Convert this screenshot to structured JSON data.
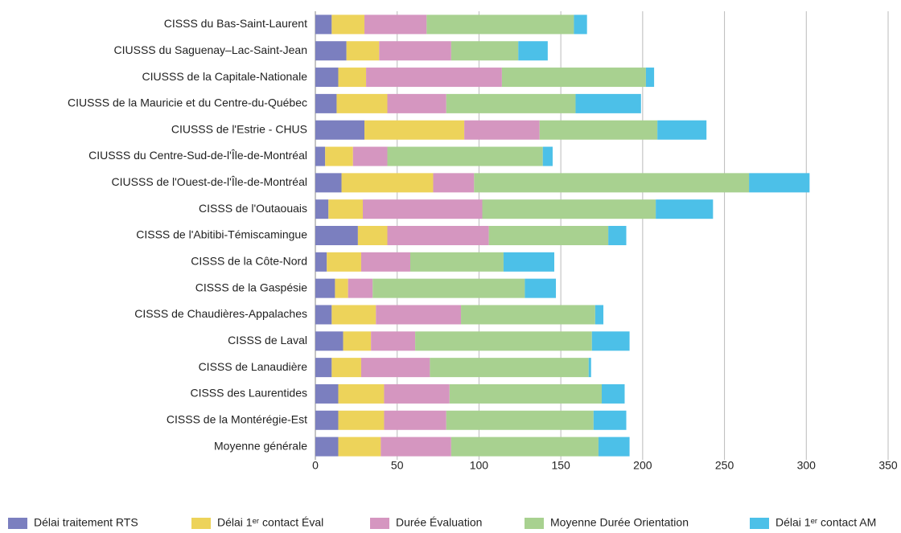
{
  "chart_data": {
    "type": "stacked-barh",
    "categories": [
      "CISSS du Bas-Saint-Laurent",
      "CIUSSS du Saguenay–Lac-Saint-Jean",
      "CIUSSS de la Capitale-Nationale",
      "CIUSSS de la Mauricie et du Centre-du-Québec",
      "CIUSSS de l'Estrie - CHUS",
      "CIUSSS du Centre-Sud-de-l'Île-de-Montréal",
      "CIUSSS de l'Ouest-de-l'Île-de-Montréal",
      "CISSS de l'Outaouais",
      "CISSS de l'Abitibi-Témiscamingue",
      "CISSS de la Côte-Nord",
      "CISSS de la Gaspésie",
      "CISSS de Chaudières-Appalaches",
      "CISSS de Laval",
      "CISSS de Lanaudière",
      "CISSS des Laurentides",
      "CISSS de la Montérégie-Est",
      "Moyenne générale"
    ],
    "series": [
      {
        "name": "Délai traitement RTS",
        "color": "#7b7fbf",
        "values": [
          10,
          19,
          14,
          13,
          30,
          6,
          16,
          8,
          26,
          7,
          12,
          10,
          17,
          10,
          14,
          14,
          14
        ]
      },
      {
        "name": "Délai 1ᵉʳ contact Éval",
        "color": "#edd35a",
        "values": [
          20,
          20,
          17,
          31,
          61,
          17,
          56,
          21,
          18,
          21,
          8,
          27,
          17,
          18,
          28,
          28,
          26
        ]
      },
      {
        "name": "Durée Évaluation",
        "color": "#d596c0",
        "values": [
          38,
          44,
          83,
          36,
          46,
          21,
          25,
          73,
          62,
          30,
          15,
          52,
          27,
          42,
          40,
          38,
          43
        ]
      },
      {
        "name": "Moyenne Durée Orientation",
        "color": "#a8d190",
        "values": [
          90,
          41,
          88,
          79,
          72,
          95,
          168,
          106,
          73,
          57,
          93,
          82,
          108,
          97,
          93,
          90,
          90
        ]
      },
      {
        "name": "Délai 1ᵉʳ contact AM",
        "color": "#4cc0e8",
        "values": [
          8,
          18,
          5,
          40,
          30,
          6,
          37,
          35,
          11,
          31,
          19,
          5,
          23,
          1.5,
          14,
          20,
          19
        ]
      }
    ],
    "xlim": [
      0,
      350
    ],
    "xticks": [
      0,
      50,
      100,
      150,
      200,
      250,
      300,
      350
    ],
    "grid": true,
    "legend": "bottom"
  }
}
